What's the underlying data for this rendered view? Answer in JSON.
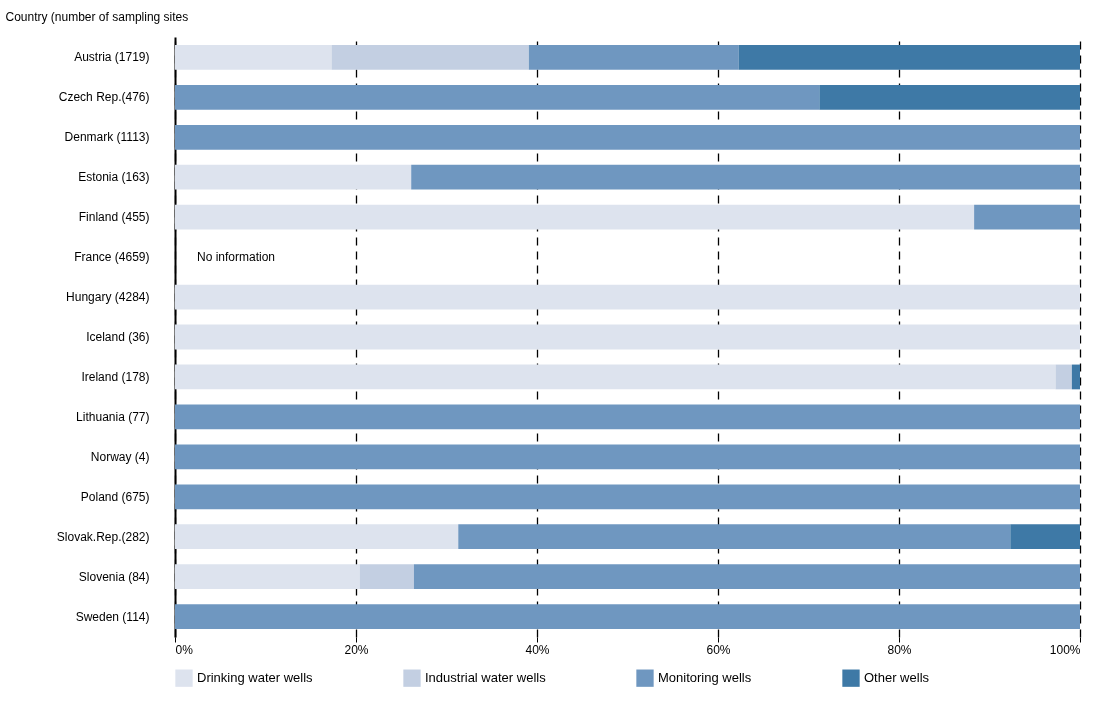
{
  "chart_data": {
    "type": "bar",
    "orientation": "horizontal",
    "stacked": true,
    "ylabel": "Country (number of sampling sites",
    "categories": [
      "Austria (1719)",
      "Czech Rep.(476)",
      "Denmark (1113)",
      "Estonia (163)",
      "Finland (455)",
      "France (4659)",
      "Hungary (4284)",
      "Iceland (36)",
      "Ireland (178)",
      "Lithuania (77)",
      "Norway (4)",
      "Poland (675)",
      "Slovak.Rep.(282)",
      "Slovenia (84)",
      "Sweden (114)"
    ],
    "series": [
      {
        "name": "Drinking water wells",
        "color": "#dde3ee",
        "values": [
          17.3,
          0,
          0,
          26.1,
          88.3,
          null,
          100,
          100,
          97.3,
          0,
          0,
          0,
          31.3,
          20.4,
          0
        ]
      },
      {
        "name": "Industrial water wells",
        "color": "#c3cfe2",
        "values": [
          21.8,
          0,
          0,
          0,
          0,
          null,
          0,
          0,
          1.8,
          0,
          0,
          0,
          0,
          6,
          0
        ]
      },
      {
        "name": "Monitoring wells",
        "color": "#6f97c0",
        "values": [
          23.2,
          71.2,
          100,
          73.9,
          11.7,
          null,
          0,
          0,
          0,
          100,
          100,
          100,
          61,
          73.6,
          100
        ]
      },
      {
        "name": "Other wells",
        "color": "#3e79a6",
        "values": [
          37.7,
          28.8,
          0,
          0,
          0,
          null,
          0,
          0,
          0.9,
          0,
          0,
          0,
          7.7,
          0,
          0
        ]
      }
    ],
    "xlim": [
      0,
      100
    ],
    "xticks": [
      {
        "value": 0,
        "label": "0%"
      },
      {
        "value": 20,
        "label": "20%"
      },
      {
        "value": 40,
        "label": "40%"
      },
      {
        "value": 60,
        "label": "60%"
      },
      {
        "value": 80,
        "label": "80%"
      },
      {
        "value": 100,
        "label": "100%"
      }
    ],
    "grid": "x",
    "legend": "bottom",
    "annotations": [
      "No information"
    ]
  }
}
